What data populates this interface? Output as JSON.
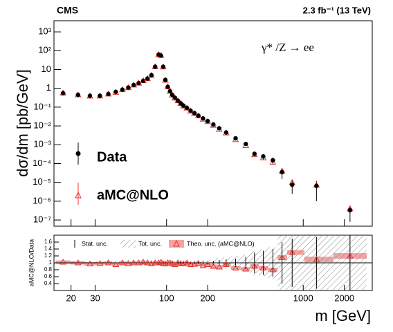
{
  "chart_data": {
    "type": "scatter",
    "header": "CMS",
    "lumi": "2.3 fb⁻¹ (13 TeV)",
    "annotation": "γ* /Z → ee",
    "ylabel": "dσ/dm [pb/GeV]",
    "xlabel": "m [GeV]",
    "log_x": true,
    "log_y": true,
    "xlim": [
      15,
      3200
    ],
    "xticks": [
      20,
      30,
      100,
      200,
      1000,
      2000
    ],
    "ylim": [
      4.7e-08,
      3900
    ],
    "yticks": [
      {
        "value": 1e-07,
        "label": "10⁻⁷"
      },
      {
        "value": 1e-06,
        "label": "10⁻⁶"
      },
      {
        "value": 1e-05,
        "label": "10⁻⁵"
      },
      {
        "value": 0.0001,
        "label": "10⁻⁴"
      },
      {
        "value": 0.001,
        "label": "10⁻³"
      },
      {
        "value": 0.01,
        "label": "10⁻²"
      },
      {
        "value": 0.1,
        "label": "10⁻¹"
      },
      1,
      10,
      {
        "value": 100,
        "label": "10²"
      },
      {
        "value": 1000,
        "label": "10³"
      }
    ],
    "x": [
      17.5,
      22.5,
      27.5,
      32.5,
      37.5,
      42.5,
      47.5,
      52.5,
      57.5,
      62.5,
      67.5,
      72.5,
      77.5,
      82.5,
      87.5,
      91,
      94.5,
      98,
      102,
      106,
      110,
      115,
      121,
      127,
      133,
      141,
      150,
      160,
      171,
      185,
      200,
      220,
      243,
      273,
      320,
      380,
      440,
      510,
      600,
      700,
      830,
      1250,
      2200
    ],
    "series": [
      {
        "name": "Data",
        "color": "#000000",
        "values": [
          0.55,
          0.45,
          0.4,
          0.4,
          0.5,
          0.65,
          0.85,
          1.1,
          1.5,
          1.9,
          2.5,
          3.3,
          5,
          14,
          62,
          55,
          14,
          2.8,
          1.2,
          0.7,
          0.45,
          0.32,
          0.22,
          0.16,
          0.12,
          0.09,
          0.065,
          0.048,
          0.035,
          0.025,
          0.018,
          0.012,
          0.0075,
          0.0045,
          0.0022,
          0.0011,
          0.00033,
          0.00024,
          0.00015,
          3.5e-05,
          7.5e-06,
          6.5e-06,
          3.3e-07
        ],
        "errors": [
          0,
          0,
          0,
          0,
          0,
          0,
          0,
          0,
          0,
          0,
          0,
          0,
          0,
          0,
          0,
          0,
          0,
          0,
          0,
          0,
          0,
          0,
          0,
          0,
          0,
          0,
          0,
          0,
          0,
          0,
          0,
          0,
          0,
          0,
          0,
          0,
          0.0001,
          8e-05,
          6e-05,
          2e-05,
          5e-06,
          5.5e-06,
          2.5e-07
        ]
      },
      {
        "name": "aMC@NLO",
        "color": "#e8332b",
        "values": [
          0.561,
          0.45,
          0.388,
          0.392,
          0.5,
          0.618,
          0.85,
          1.08,
          1.5,
          1.9,
          2.55,
          3.3,
          4.9,
          14,
          62,
          56,
          13.7,
          2.72,
          1.2,
          0.7,
          0.441,
          0.304,
          0.22,
          0.157,
          0.116,
          0.09,
          0.0618,
          0.0461,
          0.0343,
          0.023,
          0.0171,
          0.0108,
          0.0066,
          0.00428,
          0.00187,
          0.0009,
          0.000297,
          0.000204,
          0.00012,
          4e-05,
          9.8e-06,
          7.2e-06,
          4e-07
        ]
      }
    ],
    "ratio": {
      "ylabel": "aMC@NLO/Data",
      "ylim": [
        0.2,
        1.8
      ],
      "yticks": [
        0.4,
        0.6,
        0.8,
        1,
        1.2,
        1.4,
        1.6
      ],
      "reference": 1,
      "stat_name": "Stat. unc.",
      "total_name": "Tot. unc.",
      "theory_name": "Theo. unc. (aMC@NLO)",
      "values": [
        1.02,
        1,
        0.97,
        0.98,
        1,
        0.95,
        1,
        0.98,
        1,
        1,
        1.02,
        1,
        0.98,
        1,
        1,
        1.02,
        0.98,
        0.97,
        1,
        1,
        0.98,
        0.95,
        1,
        0.98,
        0.97,
        1,
        0.95,
        0.96,
        0.98,
        0.92,
        0.95,
        0.9,
        0.88,
        0.95,
        0.85,
        0.82,
        0.9,
        0.85,
        0.8,
        1.15,
        1.3,
        1.1,
        1.2
      ],
      "theory_unc": [
        0.05,
        0.05,
        0.05,
        0.05,
        0.05,
        0.05,
        0.05,
        0.05,
        0.05,
        0.05,
        0.05,
        0.05,
        0.05,
        0.05,
        0.05,
        0.05,
        0.05,
        0.05,
        0.05,
        0.05,
        0.05,
        0.05,
        0.05,
        0.05,
        0.05,
        0.05,
        0.05,
        0.05,
        0.05,
        0.05,
        0.05,
        0.05,
        0.05,
        0.05,
        0.05,
        0.05,
        0.06,
        0.06,
        0.06,
        0.07,
        0.07,
        0.08,
        0.08
      ],
      "total_unc": [
        0.04,
        0.04,
        0.04,
        0.04,
        0.04,
        0.04,
        0.04,
        0.04,
        0.04,
        0.04,
        0.04,
        0.04,
        0.04,
        0.04,
        0.04,
        0.04,
        0.04,
        0.04,
        0.04,
        0.04,
        0.04,
        0.05,
        0.05,
        0.05,
        0.05,
        0.06,
        0.06,
        0.07,
        0.07,
        0.08,
        0.1,
        0.12,
        0.14,
        0.16,
        0.2,
        0.25,
        0.35,
        0.4,
        0.45,
        0.8,
        0.8,
        0.8,
        0.8
      ],
      "stat_unc": [
        0.01,
        0.01,
        0.01,
        0.01,
        0.01,
        0.01,
        0.01,
        0.01,
        0.01,
        0.01,
        0.01,
        0.01,
        0.01,
        0.01,
        0.01,
        0.01,
        0.01,
        0.01,
        0.01,
        0.01,
        0.01,
        0.01,
        0.02,
        0.02,
        0.02,
        0.02,
        0.03,
        0.03,
        0.03,
        0.04,
        0.05,
        0.06,
        0.08,
        0.1,
        0.12,
        0.18,
        0.3,
        0.35,
        0.4,
        0.6,
        0.7,
        0.75,
        0.8
      ]
    }
  }
}
